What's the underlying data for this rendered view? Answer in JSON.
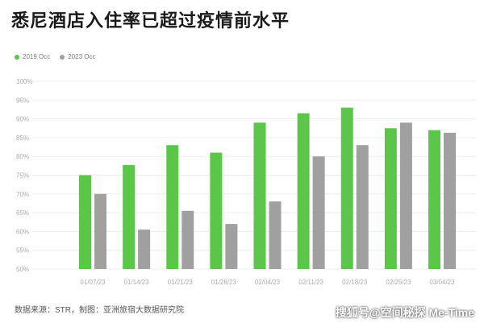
{
  "title": "悉尼酒店入住率已超过疫情前水平",
  "legend": [
    {
      "name": "2019 Occ",
      "color": "#5cc64b"
    },
    {
      "name": "2023 Occ",
      "color": "#a0a0a0"
    }
  ],
  "source": "数据来源：STR，制图：亚洲旅宿大数据研究院",
  "watermark": "搜狐号@空间秘探 Me-Time",
  "chart_data": {
    "type": "bar",
    "categories": [
      "01/07/23",
      "01/14/23",
      "01/21/23",
      "01/28/23",
      "02/04/23",
      "02/11/23",
      "02/18/23",
      "02/25/23",
      "03/04/23"
    ],
    "series": [
      {
        "name": "2019 Occ",
        "color": "#5cc64b",
        "values": [
          75,
          77.7,
          83,
          81,
          89,
          91.5,
          93,
          87.5,
          87
        ]
      },
      {
        "name": "2023 Occ",
        "color": "#a0a0a0",
        "values": [
          70,
          60.5,
          65.5,
          62,
          68,
          80,
          83,
          89,
          86.3
        ]
      }
    ],
    "ylim": [
      50,
      100
    ],
    "yticks": [
      "50%",
      "55%",
      "60%",
      "65%",
      "70%",
      "75%",
      "80%",
      "85%",
      "90%",
      "95%",
      "100%"
    ],
    "grid": true,
    "legend_position": "top-left"
  }
}
